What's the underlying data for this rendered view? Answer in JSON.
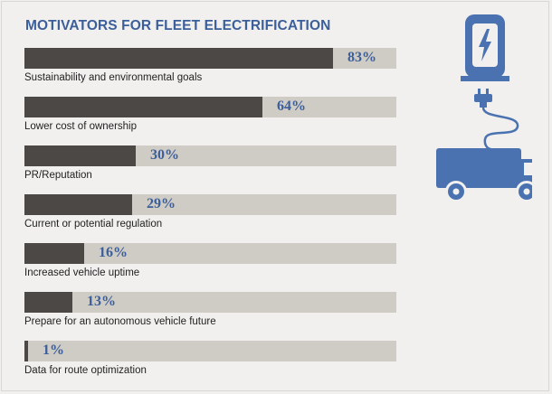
{
  "colors": {
    "background": "#f1f0ee",
    "title": "#3b5f9a",
    "bar_fill": "#4b4846",
    "bar_track": "#cfcbc5",
    "value_text": "#3b5f9a",
    "icon": "#4a72b0"
  },
  "icons": [
    "ev-charger-icon",
    "plug-icon",
    "delivery-van-icon"
  ],
  "chart_data": {
    "type": "bar",
    "orientation": "horizontal",
    "title": "MOTIVATORS FOR FLEET ELECTRIFICATION",
    "categories": [
      "Sustainability and environmental goals",
      "Lower cost of ownership",
      "PR/Reputation",
      "Current or potential regulation",
      "Increased vehicle uptime",
      "Prepare for an autonomous vehicle future",
      "Data for route optimization"
    ],
    "values": [
      83,
      64,
      30,
      29,
      16,
      13,
      1
    ],
    "value_labels": [
      "83%",
      "64%",
      "30%",
      "29%",
      "16%",
      "13%",
      "1%"
    ],
    "xlim": [
      0,
      100
    ],
    "unit": "%",
    "grid": false,
    "legend": "none"
  }
}
